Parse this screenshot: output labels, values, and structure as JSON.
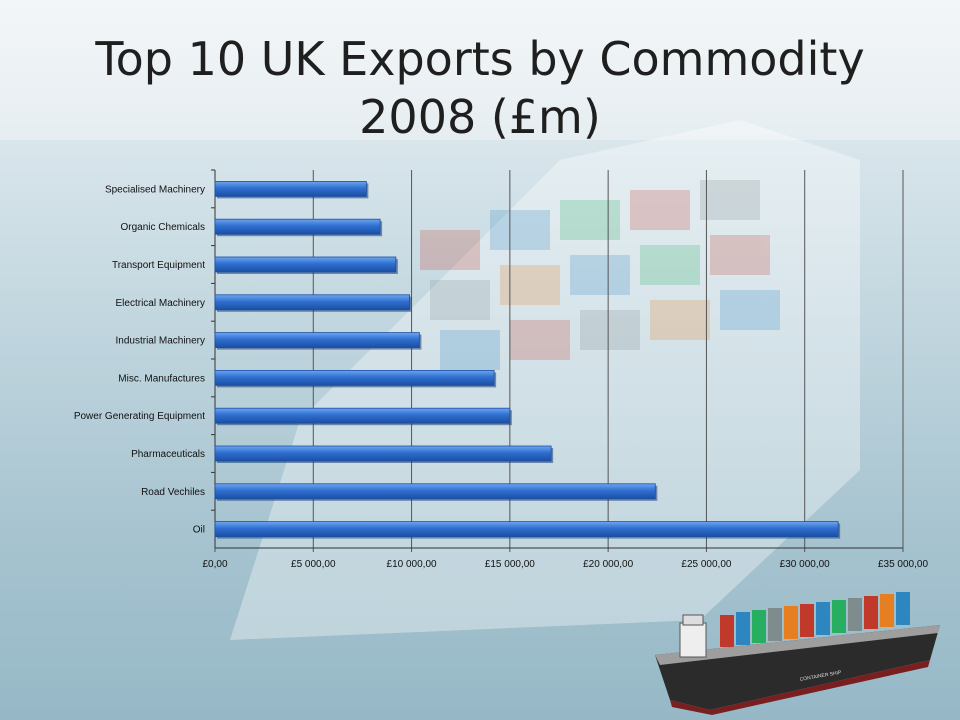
{
  "slide": {
    "title": "Top 10 UK Exports by Commodity 2008 (£m)",
    "ship_label": "CONTAINER SHIP"
  },
  "colors": {
    "bar": "#2f6fd0",
    "bar_light": "#6ea5f0",
    "bar_dark": "#1b4fa3",
    "grid": "#555555"
  },
  "chart_data": {
    "type": "bar",
    "orientation": "horizontal",
    "title": "Top 10 UK Exports by Commodity 2008 (£m)",
    "categories": [
      "Specialised Machinery",
      "Organic Chemicals",
      "Transport Equipment",
      "Electrical Machinery",
      "Industrial Machinery",
      "Misc. Manufactures",
      "Power Generating Equipment",
      "Pharmaceuticals",
      "Road Vechiles",
      "Oil"
    ],
    "values": [
      7700,
      8400,
      9200,
      9900,
      10400,
      14200,
      15000,
      17100,
      22400,
      31700
    ],
    "xlim": [
      0,
      35000
    ],
    "x_ticks": [
      0,
      5000,
      10000,
      15000,
      20000,
      25000,
      30000,
      35000
    ],
    "x_tick_labels": [
      "£0,00",
      "£5 000,00",
      "£10 000,00",
      "£15 000,00",
      "£20 000,00",
      "£25 000,00",
      "£30 000,00",
      "£35 000,00"
    ],
    "grid": "vertical",
    "legend": "none"
  }
}
